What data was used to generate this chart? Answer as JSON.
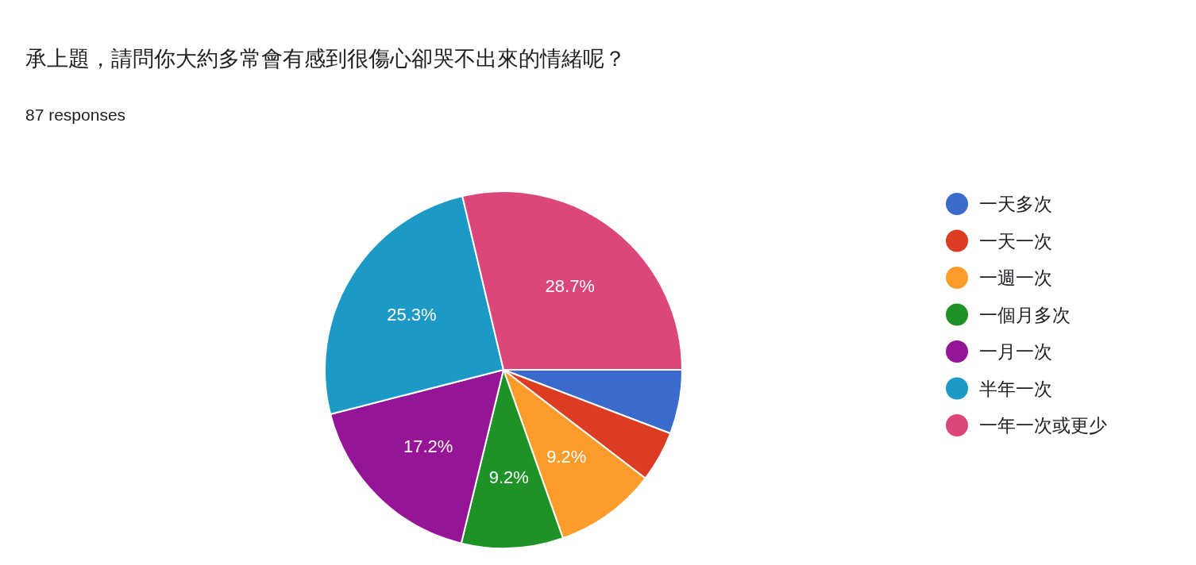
{
  "chart_data": {
    "type": "pie",
    "title": "承上題，請問你大約多常會有感到很傷心卻哭不出來的情緒呢？",
    "subtitle": "87 responses",
    "categories": [
      "一天多次",
      "一天一次",
      "一週一次",
      "一個月多次",
      "一月一次",
      "半年一次",
      "一年一次或更少"
    ],
    "values": [
      5.8,
      4.6,
      9.2,
      9.2,
      17.2,
      25.3,
      28.7
    ],
    "value_labels": [
      null,
      null,
      "9.2%",
      "9.2%",
      "17.2%",
      "25.3%",
      "28.7%"
    ],
    "colors": [
      "#3a6bcc",
      "#db3c22",
      "#fe9c2b",
      "#1f9227",
      "#951596",
      "#1c9ac5",
      "#db477a"
    ],
    "legend": "right"
  }
}
